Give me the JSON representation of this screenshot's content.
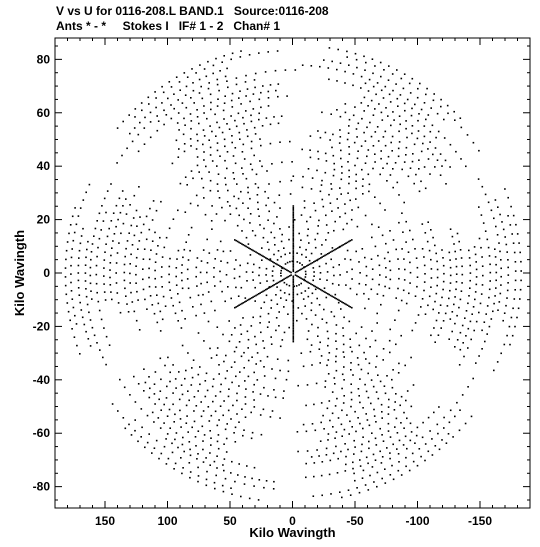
{
  "header": {
    "title_line1": "V vs U for 0116-208.L BAND.1   Source:0116-208",
    "title_line2": "Ants * - *     Stokes I   IF# 1 - 2   Chan# 1"
  },
  "chart_data": {
    "type": "scatter",
    "title": "V vs U for 0116-208.L BAND.1   Source:0116-208",
    "subtitle": "Ants * - *     Stokes I   IF# 1 - 2   Chan# 1",
    "xlabel": "Kilo Wavingth",
    "ylabel": "Kilo Wavingth",
    "xlim": [
      190,
      -190
    ],
    "ylim": [
      -88,
      88
    ],
    "x_ticks": [
      150,
      100,
      50,
      0,
      -50,
      -100,
      -150
    ],
    "x_tick_labels": [
      "150",
      "100",
      "50",
      "0",
      "-50",
      "-100",
      "-150"
    ],
    "y_ticks": [
      -80,
      -60,
      -40,
      -20,
      0,
      20,
      40,
      60,
      80
    ],
    "y_tick_labels": [
      "-80",
      "-60",
      "-40",
      "-20",
      "0",
      "20",
      "40",
      "60",
      "80"
    ],
    "grid": false,
    "marker_color": "#000000",
    "points_description": "uv-coverage: six-armed star of tracks symmetric about origin, arms toward (+-62,+-85) and (+-185,0)"
  }
}
